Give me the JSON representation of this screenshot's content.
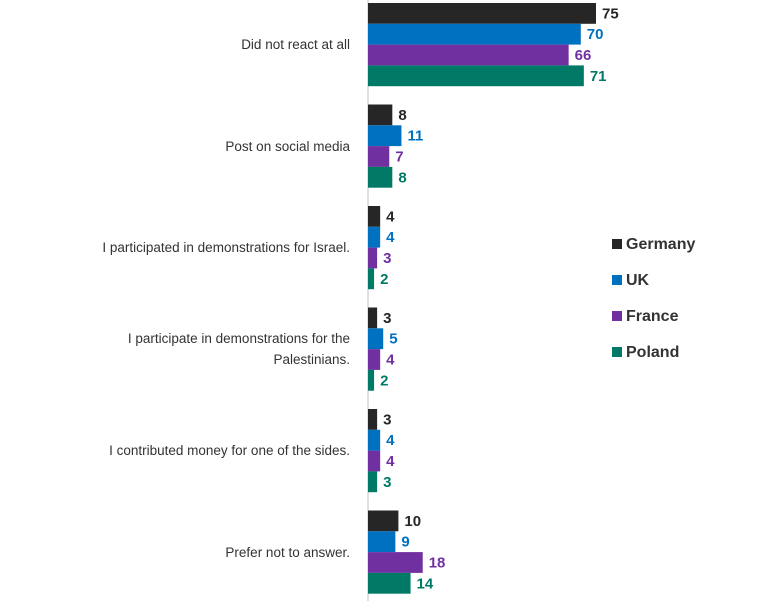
{
  "chart_data": {
    "type": "bar",
    "orientation": "horizontal",
    "categories": [
      "Did not react at all",
      "Post on social media",
      "I participated in demonstrations for Israel.",
      "I participate in demonstrations for the\nPalestinians.",
      "I contributed money for one of the sides.",
      "Prefer not to answer."
    ],
    "series": [
      {
        "name": "Germany",
        "color": "#262626",
        "values": [
          75,
          8,
          4,
          3,
          3,
          10
        ]
      },
      {
        "name": "UK",
        "color": "#0070c0",
        "values": [
          70,
          11,
          4,
          5,
          4,
          9
        ]
      },
      {
        "name": "France",
        "color": "#7030a0",
        "values": [
          66,
          7,
          3,
          4,
          4,
          18
        ]
      },
      {
        "name": "Poland",
        "color": "#007a66",
        "values": [
          71,
          8,
          2,
          2,
          3,
          14
        ]
      }
    ]
  }
}
